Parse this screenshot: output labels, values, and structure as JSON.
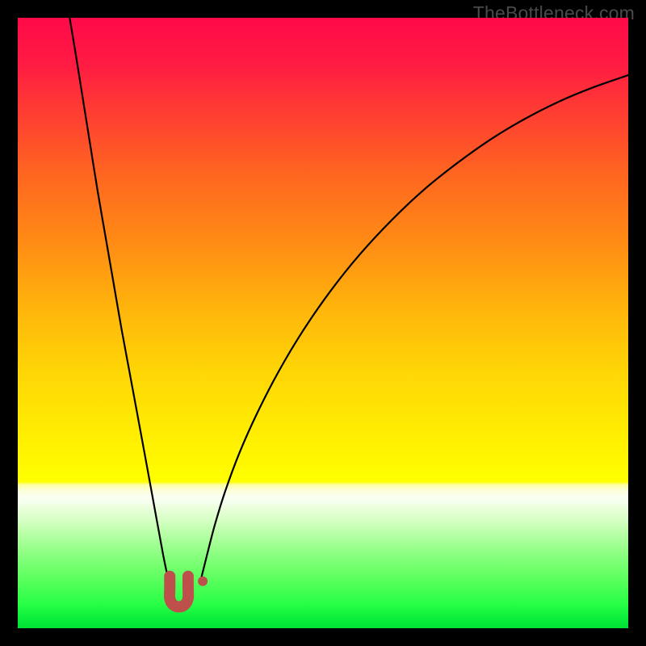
{
  "meta": {
    "watermark_text": "TheBottleneck.com",
    "watermark_color": "#4a4a4a",
    "watermark_fontsize": 23
  },
  "frame": {
    "outer_size": 800,
    "border_color": "#000000",
    "border_width": 22,
    "inner_size": 756
  },
  "chart": {
    "type": "line-over-gradient",
    "xlim": [
      0,
      1
    ],
    "ylim": [
      0,
      1
    ],
    "aspect_ratio": 1.0,
    "background": {
      "type": "vertical-gradient",
      "stops": [
        {
          "y": 0.0,
          "color": "#ff0a49"
        },
        {
          "y": 0.075,
          "color": "#ff1b43"
        },
        {
          "y": 0.15,
          "color": "#ff3b33"
        },
        {
          "y": 0.26,
          "color": "#ff6720"
        },
        {
          "y": 0.37,
          "color": "#ff8c14"
        },
        {
          "y": 0.48,
          "color": "#ffb60b"
        },
        {
          "y": 0.58,
          "color": "#ffd606"
        },
        {
          "y": 0.68,
          "color": "#ffed02"
        },
        {
          "y": 0.745,
          "color": "#fffc00"
        },
        {
          "y": 0.76,
          "color": "#ffff00"
        },
        {
          "y": 0.765,
          "color": "#feffa1"
        },
        {
          "y": 0.773,
          "color": "#fcffd3"
        },
        {
          "y": 0.783,
          "color": "#fafff0"
        },
        {
          "y": 0.793,
          "color": "#f5fff0"
        },
        {
          "y": 0.8,
          "color": "#eeffe0"
        },
        {
          "y": 0.81,
          "color": "#e3ffd4"
        },
        {
          "y": 0.82,
          "color": "#d9ffc8"
        },
        {
          "y": 0.83,
          "color": "#ccffba"
        },
        {
          "y": 0.843,
          "color": "#bbffaa"
        },
        {
          "y": 0.86,
          "color": "#a4ff96"
        },
        {
          "y": 0.88,
          "color": "#8aff80"
        },
        {
          "y": 0.903,
          "color": "#6fff6b"
        },
        {
          "y": 0.93,
          "color": "#4eff57"
        },
        {
          "y": 0.96,
          "color": "#29ff46"
        },
        {
          "y": 0.985,
          "color": "#09ed3a"
        },
        {
          "y": 1.0,
          "color": "#00e036"
        }
      ]
    },
    "curves": {
      "stroke_color": "#000000",
      "stroke_width": 2.2,
      "left": {
        "description": "descending curve from top-left to valley floor",
        "points": [
          {
            "x": 0.085,
            "y": 0.0
          },
          {
            "x": 0.095,
            "y": 0.06
          },
          {
            "x": 0.107,
            "y": 0.135
          },
          {
            "x": 0.119,
            "y": 0.21
          },
          {
            "x": 0.131,
            "y": 0.285
          },
          {
            "x": 0.144,
            "y": 0.36
          },
          {
            "x": 0.157,
            "y": 0.435
          },
          {
            "x": 0.17,
            "y": 0.51
          },
          {
            "x": 0.183,
            "y": 0.58
          },
          {
            "x": 0.196,
            "y": 0.65
          },
          {
            "x": 0.208,
            "y": 0.715
          },
          {
            "x": 0.219,
            "y": 0.775
          },
          {
            "x": 0.229,
            "y": 0.83
          },
          {
            "x": 0.238,
            "y": 0.879
          },
          {
            "x": 0.246,
            "y": 0.918
          }
        ]
      },
      "right": {
        "description": "ascending curve from valley floor up toward top-right",
        "points": [
          {
            "x": 0.301,
            "y": 0.916
          },
          {
            "x": 0.31,
            "y": 0.88
          },
          {
            "x": 0.323,
            "y": 0.83
          },
          {
            "x": 0.34,
            "y": 0.775
          },
          {
            "x": 0.363,
            "y": 0.713
          },
          {
            "x": 0.392,
            "y": 0.648
          },
          {
            "x": 0.427,
            "y": 0.58
          },
          {
            "x": 0.467,
            "y": 0.513
          },
          {
            "x": 0.512,
            "y": 0.448
          },
          {
            "x": 0.56,
            "y": 0.388
          },
          {
            "x": 0.612,
            "y": 0.332
          },
          {
            "x": 0.665,
            "y": 0.282
          },
          {
            "x": 0.72,
            "y": 0.238
          },
          {
            "x": 0.775,
            "y": 0.199
          },
          {
            "x": 0.83,
            "y": 0.166
          },
          {
            "x": 0.885,
            "y": 0.138
          },
          {
            "x": 0.94,
            "y": 0.115
          },
          {
            "x": 1.0,
            "y": 0.094
          }
        ]
      }
    },
    "markers": {
      "color": "#be504c",
      "glyph_stroke_width": 14,
      "glyph_linecap": "round",
      "u_shape": {
        "description": "U-shaped squiggle at valley bottom",
        "points": [
          {
            "x": 0.249,
            "y": 0.915
          },
          {
            "x": 0.249,
            "y": 0.935
          },
          {
            "x": 0.249,
            "y": 0.951
          },
          {
            "x": 0.254,
            "y": 0.961
          },
          {
            "x": 0.264,
            "y": 0.965
          },
          {
            "x": 0.274,
            "y": 0.961
          },
          {
            "x": 0.279,
            "y": 0.951
          },
          {
            "x": 0.279,
            "y": 0.935
          },
          {
            "x": 0.279,
            "y": 0.915
          }
        ]
      },
      "dot": {
        "x": 0.303,
        "y": 0.923,
        "radius_px": 6
      }
    }
  }
}
